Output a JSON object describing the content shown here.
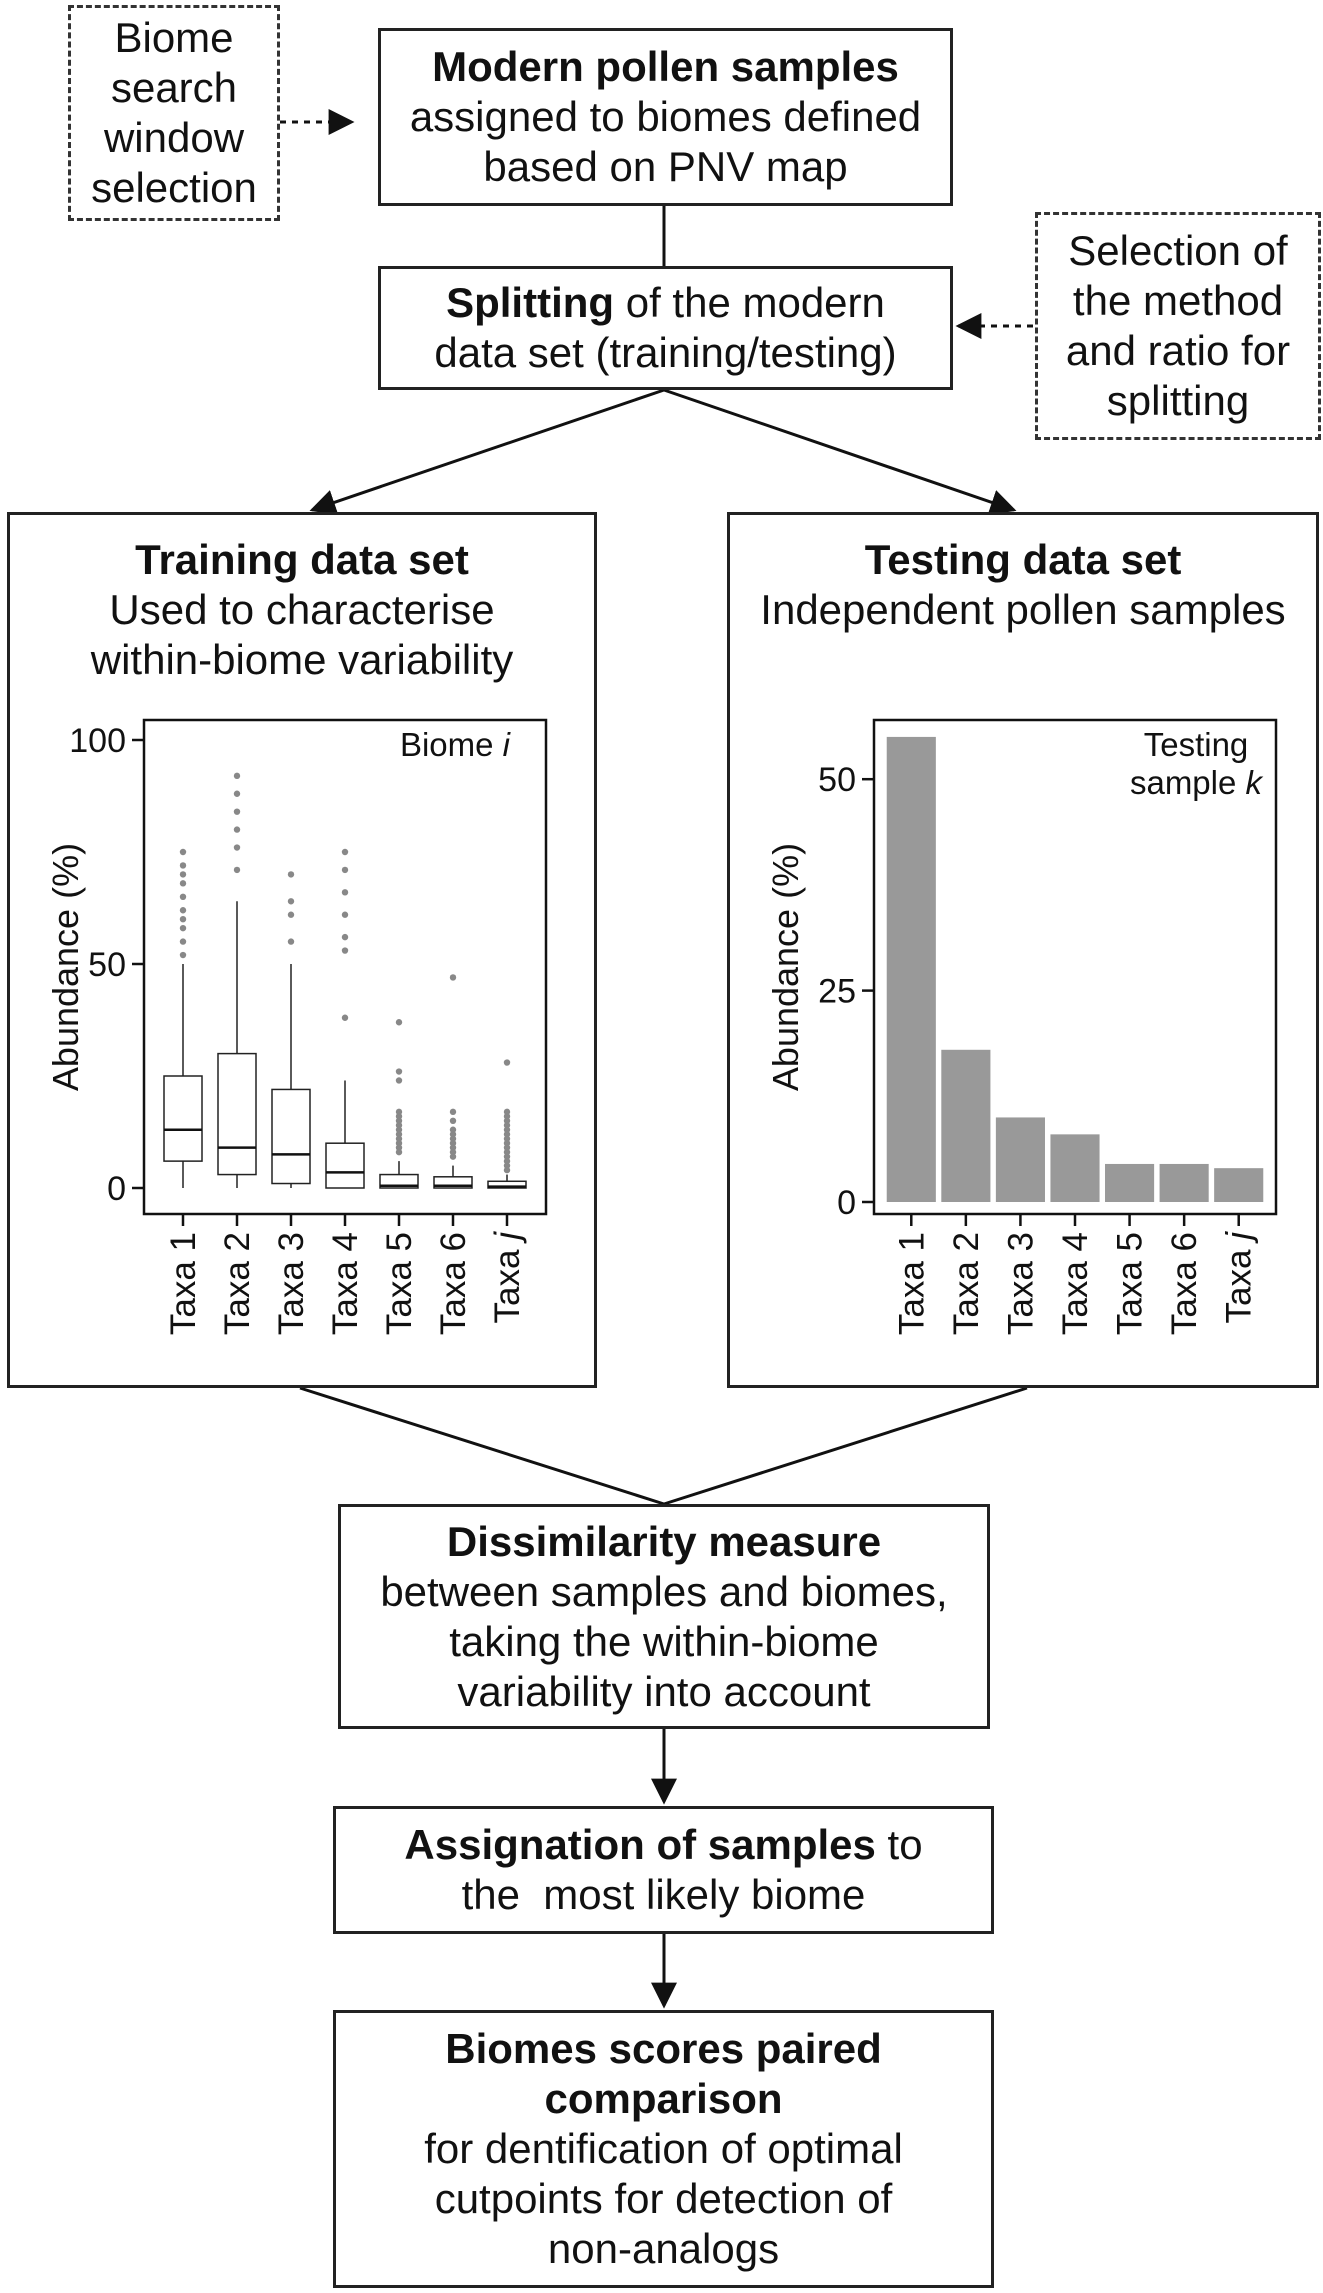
{
  "nodes": {
    "biome_window": {
      "lines": [
        "Biome",
        "search",
        "window",
        "selection"
      ]
    },
    "modern_pollen": {
      "title": "Modern pollen samples",
      "lines": [
        "assigned to biomes defined",
        "based on PNV map"
      ]
    },
    "splitting": {
      "bold": "Splitting",
      "rest": " of the modern",
      "line2": "data set (training/testing)"
    },
    "selection_method": {
      "lines": [
        "Selection of",
        "the method",
        "and ratio for",
        "splitting"
      ]
    },
    "training": {
      "title": "Training data set",
      "lines": [
        "Used to characterise",
        "within-biome variability"
      ]
    },
    "testing": {
      "title": "Testing data set",
      "lines": [
        "Independent pollen samples"
      ]
    },
    "dissimilarity": {
      "title": "Dissimilarity measure",
      "lines": [
        "between samples and biomes,",
        "taking the within-biome",
        "variability into account"
      ]
    },
    "assignation": {
      "bold": "Assignation of samples",
      "rest": " to",
      "line2": "the  most likely biome"
    },
    "biome_scores": {
      "title_lines": [
        "Biomes scores paired",
        "comparison"
      ],
      "lines": [
        "for dentification of optimal",
        "cutpoints for detection of",
        "non-analogs"
      ]
    }
  },
  "chart_data": [
    {
      "type": "box",
      "title_prefix": "Biome ",
      "title_italic": "i",
      "ylabel": "Abundance (%)",
      "ylim": [
        0,
        100
      ],
      "yticks": [
        0,
        50,
        100
      ],
      "categories": [
        "Taxa 1",
        "Taxa 2",
        "Taxa 3",
        "Taxa 4",
        "Taxa 5",
        "Taxa 6",
        "Taxa j"
      ],
      "italic_suffix_last": true,
      "boxes": [
        {
          "whisker_low": 0,
          "q1": 6,
          "median": 13,
          "q3": 25,
          "whisker_high": 50,
          "outliers": [
            52,
            55,
            58,
            60,
            62,
            65,
            68,
            70,
            72,
            75
          ]
        },
        {
          "whisker_low": 0,
          "q1": 3,
          "median": 9,
          "q3": 30,
          "whisker_high": 64,
          "outliers": [
            71,
            76,
            80,
            84,
            88,
            92
          ]
        },
        {
          "whisker_low": 0,
          "q1": 1,
          "median": 7.5,
          "q3": 22,
          "whisker_high": 50,
          "outliers": [
            55,
            61,
            64,
            70
          ]
        },
        {
          "whisker_low": 0,
          "q1": 0,
          "median": 3.5,
          "q3": 10,
          "whisker_high": 24,
          "outliers": [
            38,
            53,
            56,
            61,
            66,
            71,
            75
          ]
        },
        {
          "whisker_low": 0,
          "q1": 0,
          "median": 0.5,
          "q3": 3,
          "whisker_high": 6,
          "outliers": [
            8,
            9,
            10,
            11,
            12,
            13,
            14,
            15,
            16,
            17,
            24,
            26,
            37
          ]
        },
        {
          "whisker_low": 0,
          "q1": 0,
          "median": 0.5,
          "q3": 2.5,
          "whisker_high": 5,
          "outliers": [
            7,
            8,
            9,
            10,
            11,
            12,
            13,
            15,
            17,
            47
          ]
        },
        {
          "whisker_low": 0,
          "q1": 0,
          "median": 0.3,
          "q3": 1.5,
          "whisker_high": 3,
          "outliers": [
            4,
            5,
            6,
            7,
            8,
            9,
            10,
            11,
            12,
            13,
            14,
            15,
            16,
            17,
            28
          ]
        }
      ]
    },
    {
      "type": "bar",
      "title_lines": [
        "Testing",
        "sample "
      ],
      "title_italic": "k",
      "ylabel": "Abundance (%)",
      "ylim": [
        0,
        57
      ],
      "yticks": [
        0,
        25,
        50
      ],
      "categories": [
        "Taxa 1",
        "Taxa 2",
        "Taxa 3",
        "Taxa 4",
        "Taxa 5",
        "Taxa 6",
        "Taxa j"
      ],
      "italic_suffix_last": true,
      "values": [
        55,
        18,
        10,
        8,
        4.5,
        4.5,
        4
      ],
      "bar_color": "#999999"
    }
  ]
}
